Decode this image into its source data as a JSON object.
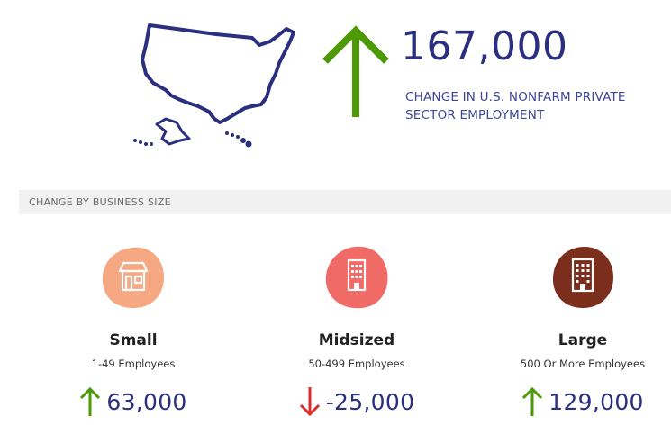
{
  "headline": {
    "value": "167,000",
    "caption": "CHANGE IN U.S. NONFARM PRIVATE SECTOR EMPLOYMENT",
    "direction": "up",
    "color": "#2b2f7f"
  },
  "section": {
    "title": "CHANGE BY BUSINESS SIZE"
  },
  "colors": {
    "up": "#4e9a06",
    "down": "#d72e2e",
    "map": "#2b2f7f"
  },
  "sizes": [
    {
      "name": "Small",
      "range": "1-49 Employees",
      "change": "63,000",
      "direction": "up",
      "icon": "storefront-icon",
      "blob_color": "#f6a882"
    },
    {
      "name": "Midsized",
      "range": "50-499 Employees",
      "change": "-25,000",
      "direction": "down",
      "icon": "office-building-icon",
      "blob_color": "#f06b65"
    },
    {
      "name": "Large",
      "range": "500 Or More Employees",
      "change": "129,000",
      "direction": "up",
      "icon": "tall-building-icon",
      "blob_color": "#7c2e1c"
    }
  ]
}
